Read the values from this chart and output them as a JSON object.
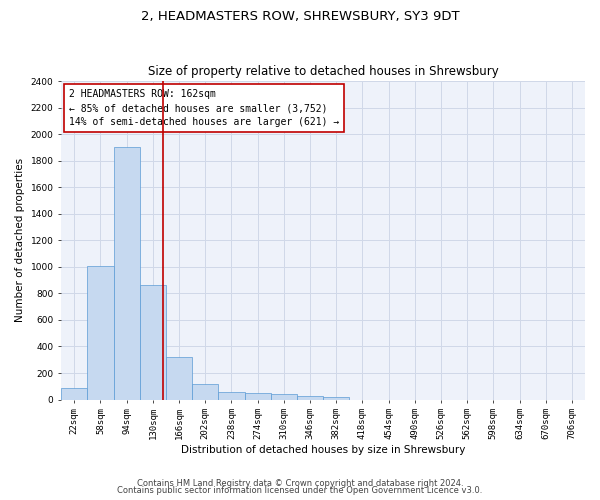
{
  "title": "2, HEADMASTERS ROW, SHREWSBURY, SY3 9DT",
  "subtitle": "Size of property relative to detached houses in Shrewsbury",
  "xlabel": "Distribution of detached houses by size in Shrewsbury",
  "ylabel": "Number of detached properties",
  "footnote1": "Contains HM Land Registry data © Crown copyright and database right 2024.",
  "footnote2": "Contains public sector information licensed under the Open Government Licence v3.0.",
  "annotation_title": "2 HEADMASTERS ROW: 162sqm",
  "annotation_line1": "← 85% of detached houses are smaller (3,752)",
  "annotation_line2": "14% of semi-detached houses are larger (621) →",
  "bar_edges": [
    22,
    58,
    94,
    130,
    166,
    202,
    238,
    274,
    310,
    346,
    382,
    418,
    454,
    490,
    526,
    562,
    598,
    634,
    670,
    706,
    742
  ],
  "bar_heights": [
    90,
    1010,
    1900,
    860,
    320,
    115,
    55,
    50,
    40,
    25,
    20,
    0,
    0,
    0,
    0,
    0,
    0,
    0,
    0,
    0
  ],
  "bar_color": "#c6d9f0",
  "bar_edgecolor": "#5b9bd5",
  "grid_color": "#d0d8e8",
  "bg_color": "#eef2fa",
  "vline_x": 162,
  "vline_color": "#c00000",
  "ylim": [
    0,
    2400
  ],
  "yticks": [
    0,
    200,
    400,
    600,
    800,
    1000,
    1200,
    1400,
    1600,
    1800,
    2000,
    2200,
    2400
  ],
  "annotation_box_color": "#ffffff",
  "annotation_box_edgecolor": "#c00000",
  "title_fontsize": 9.5,
  "subtitle_fontsize": 8.5,
  "axis_label_fontsize": 7.5,
  "tick_fontsize": 6.5,
  "annotation_fontsize": 7.0,
  "footnote_fontsize": 6.0
}
